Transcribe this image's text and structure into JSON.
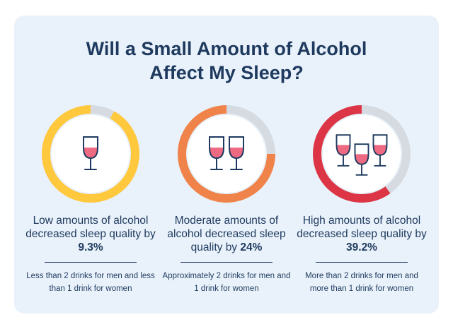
{
  "title": {
    "line1": "Will a Small Amount of Alcohol",
    "line2": "Affect My Sleep?"
  },
  "track_color": "#d6dbe2",
  "glass_color": "#1f3a5f",
  "wine_color": "#ee6a82",
  "panels": [
    {
      "icon": "one-wine-glass-icon",
      "ring_color": "#ffc83d",
      "ring_level": 0.92,
      "stat_text": "Low amounts of alcohol decreased sleep quality by ",
      "stat_value": "9.3%",
      "note": "Less than 2 drinks for men and less than 1 drink for women"
    },
    {
      "icon": "two-wine-glasses-icon",
      "ring_color": "#f0834a",
      "ring_level": 0.75,
      "stat_text": "Moderate amounts of alcohol decreased sleep quality by ",
      "stat_value": "24%",
      "note": "Approximately 2 drinks for men and 1 drink for women"
    },
    {
      "icon": "three-wine-glasses-icon",
      "ring_color": "#dc3545",
      "ring_level": 0.6,
      "stat_text": "High amounts of alcohol decreased sleep quality by ",
      "stat_value": "39.2%",
      "note": "More than 2 drinks for men and more than 1 drink for women"
    }
  ]
}
